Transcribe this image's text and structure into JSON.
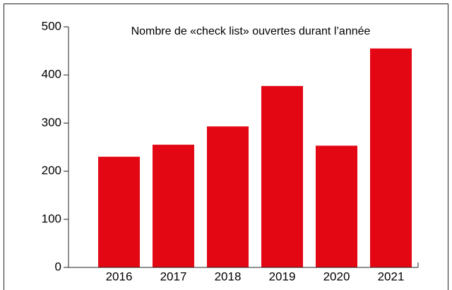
{
  "chart_data": {
    "type": "bar",
    "title": "Nombre de «check list» ouvertes durant l’année",
    "categories": [
      "2016",
      "2017",
      "2018",
      "2019",
      "2020",
      "2021"
    ],
    "values": [
      230,
      255,
      293,
      377,
      253,
      455
    ],
    "color": "#e30613",
    "ylim": [
      0,
      500
    ],
    "yticks": [
      0,
      100,
      200,
      300,
      400,
      500
    ]
  }
}
